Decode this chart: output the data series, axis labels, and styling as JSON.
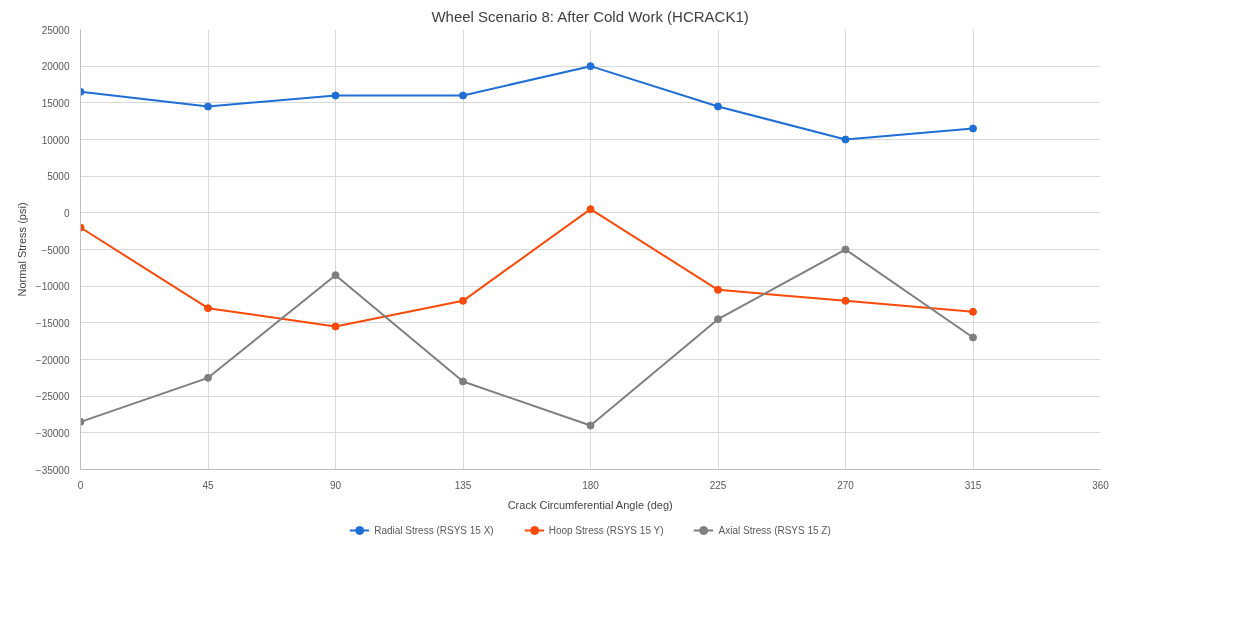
{
  "chart_data": {
    "type": "line",
    "title": "Wheel Scenario 8: After Cold Work (HCRACK1)",
    "xlabel": "Crack Circumferential Angle (deg)",
    "ylabel": "Normal Stress (psi)",
    "x": [
      0,
      45,
      90,
      135,
      180,
      225,
      270,
      315
    ],
    "series": [
      {
        "name": "Radial Stress (RSYS 15 X)",
        "color": "#1f6fd6",
        "values": [
          16500,
          14500,
          16000,
          16000,
          20000,
          14500,
          10000,
          11500
        ]
      },
      {
        "name": "Hoop Stress (RSYS 15 Y)",
        "color": "#fa4a0a",
        "values": [
          -2000,
          -13000,
          -15500,
          -12000,
          500,
          -10500,
          -12000,
          -13500
        ]
      },
      {
        "name": "Axial Stress (RSYS 15 Z)",
        "color": "#7f7f7f",
        "values": [
          -28500,
          -22500,
          -8500,
          -23000,
          -29000,
          -14500,
          -5000,
          -17000
        ]
      }
    ],
    "xlim": [
      0,
      360
    ],
    "xticks": [
      0,
      45,
      90,
      135,
      180,
      225,
      270,
      315,
      360
    ],
    "ylim": [
      -35000,
      25000
    ],
    "yticks": [
      -35000,
      -30000,
      -25000,
      -20000,
      -15000,
      -10000,
      -5000,
      0,
      5000,
      10000,
      15000,
      20000,
      25000
    ],
    "grid": true,
    "legend": "bottom",
    "marker": "circle",
    "line_style": "solid"
  }
}
